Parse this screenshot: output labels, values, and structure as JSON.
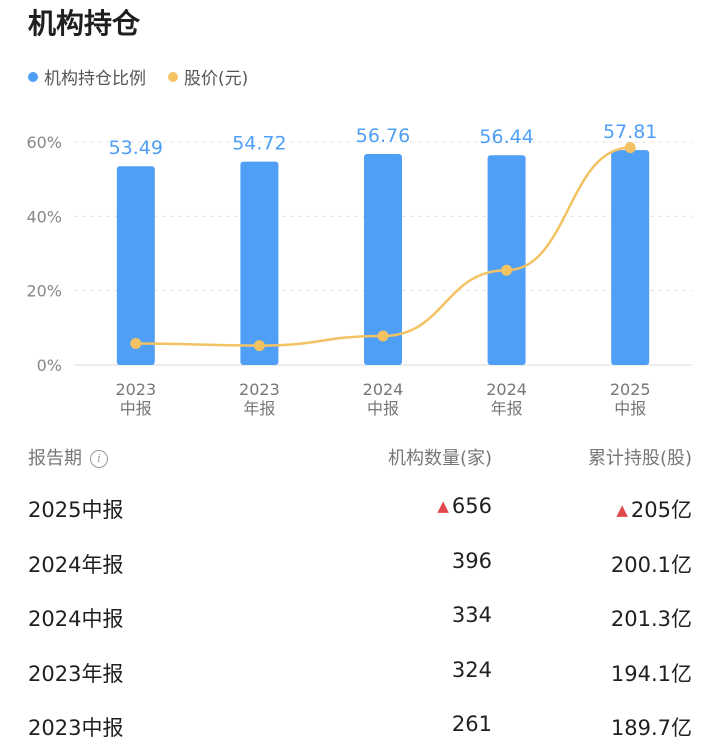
{
  "title": "机构持仓",
  "legend": [
    {
      "label": "机构持仓比例",
      "color": "#4f9ff7"
    },
    {
      "label": "股价(元)",
      "color": "#f2c263"
    }
  ],
  "chart_data": {
    "type": "bar+line",
    "categories": [
      [
        "2023",
        "中报"
      ],
      [
        "2023",
        "年报"
      ],
      [
        "2024",
        "中报"
      ],
      [
        "2024",
        "年报"
      ],
      [
        "2025",
        "中报"
      ]
    ],
    "series": [
      {
        "name": "机构持仓比例",
        "type": "bar",
        "values": [
          53.49,
          54.72,
          56.76,
          56.44,
          57.81
        ],
        "color": "#4f9ff7"
      },
      {
        "name": "股价(元)",
        "type": "line",
        "values": [
          5.8,
          5.2,
          7.8,
          25.5,
          58.5
        ],
        "color": "#f2c263"
      }
    ],
    "yticks": [
      "0%",
      "20%",
      "40%",
      "60%"
    ],
    "ylim": [
      0,
      60
    ],
    "grid": true,
    "data_labels": [
      "53.49",
      "54.72",
      "56.76",
      "56.44",
      "57.81"
    ]
  },
  "table": {
    "headers": {
      "period": "报告期",
      "count": "机构数量(家)",
      "shares": "累计持股(股)"
    },
    "rows": [
      {
        "period": "2025中报",
        "count": "656",
        "shares": "205亿",
        "up": true
      },
      {
        "period": "2024年报",
        "count": "396",
        "shares": "200.1亿",
        "up": false
      },
      {
        "period": "2024中报",
        "count": "334",
        "shares": "201.3亿",
        "up": false
      },
      {
        "period": "2023年报",
        "count": "324",
        "shares": "194.1亿",
        "up": false
      },
      {
        "period": "2023中报",
        "count": "261",
        "shares": "189.7亿",
        "up": false
      }
    ]
  }
}
